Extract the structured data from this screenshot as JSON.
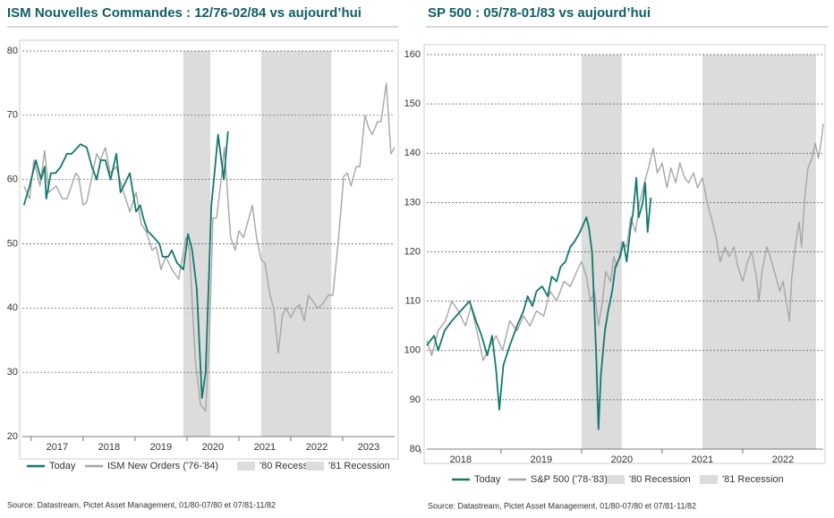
{
  "chart_data": [
    {
      "type": "line",
      "title": "ISM Nouvelles Commandes : 12/76-02/84 vs aujourd’hui",
      "source": "Source: Datastream, Pictet Asset Management, 01/80-07/80 et 07/81-11/82",
      "xlim": [
        2016.83,
        2024.0
      ],
      "xticks": [
        2017,
        2018,
        2019,
        2020,
        2021,
        2022,
        2023
      ],
      "ylim": [
        20,
        80
      ],
      "yticks": [
        20,
        30,
        40,
        50,
        60,
        70,
        80
      ],
      "grid": true,
      "bands": [
        {
          "name": "'80 Recession",
          "color": "#dcdcdc",
          "x": [
            2019.93,
            2020.45
          ]
        },
        {
          "name": "'81 Recession",
          "color": "#dcdcdc",
          "x": [
            2021.43,
            2022.78
          ]
        }
      ],
      "series": [
        {
          "name": "ISM New Orders ('76-'84)",
          "color": "#a6a6a6",
          "x": [
            2016.86,
            2016.97,
            2017.05,
            2017.17,
            2017.26,
            2017.34,
            2017.48,
            2017.6,
            2017.69,
            2017.86,
            2017.91,
            2018.0,
            2018.07,
            2018.26,
            2018.33,
            2018.43,
            2018.52,
            2018.64,
            2018.78,
            2018.9,
            2019.02,
            2019.12,
            2019.21,
            2019.33,
            2019.41,
            2019.5,
            2019.59,
            2019.71,
            2019.84,
            2019.98,
            2020.05,
            2020.16,
            2020.26,
            2020.36,
            2020.43,
            2020.5,
            2020.57,
            2020.66,
            2020.72,
            2020.84,
            2020.93,
            2021.0,
            2021.09,
            2021.26,
            2021.34,
            2021.43,
            2021.5,
            2021.6,
            2021.67,
            2021.76,
            2021.84,
            2021.91,
            2022.0,
            2022.09,
            2022.17,
            2022.26,
            2022.34,
            2022.43,
            2022.52,
            2022.6,
            2022.72,
            2022.81,
            2022.91,
            2023.02,
            2023.09,
            2023.16,
            2023.26,
            2023.33,
            2023.43,
            2023.5,
            2023.57,
            2023.67,
            2023.74,
            2023.84,
            2023.93,
            2024.0
          ],
          "values": [
            59,
            57,
            63,
            59,
            64.5,
            58,
            59,
            57,
            57,
            61,
            60.5,
            56,
            56.5,
            64,
            63,
            65,
            61,
            62,
            58,
            55,
            58,
            53,
            52,
            49,
            49.5,
            46,
            48,
            46,
            44.5,
            51,
            49,
            32,
            25,
            24,
            35,
            54,
            54,
            60,
            65,
            51,
            49,
            52,
            51,
            56,
            51,
            47.5,
            47,
            42,
            40,
            33,
            39,
            40,
            38.5,
            40,
            40.5,
            38,
            42,
            41,
            40,
            40.5,
            42,
            42,
            50,
            60.5,
            61,
            59,
            62,
            62,
            70,
            68,
            67,
            69,
            69,
            75,
            64,
            65
          ]
        },
        {
          "name": "Today",
          "color": "#12796d",
          "x": [
            2016.86,
            2016.97,
            2017.09,
            2017.19,
            2017.26,
            2017.29,
            2017.38,
            2017.47,
            2017.57,
            2017.69,
            2017.78,
            2017.95,
            2018.07,
            2018.17,
            2018.26,
            2018.34,
            2018.43,
            2018.53,
            2018.64,
            2018.72,
            2018.9,
            2019.02,
            2019.1,
            2019.16,
            2019.24,
            2019.36,
            2019.47,
            2019.53,
            2019.64,
            2019.71,
            2019.81,
            2019.93,
            2020.02,
            2020.1,
            2020.19,
            2020.29,
            2020.36,
            2020.47,
            2020.53,
            2020.6,
            2020.71,
            2020.79
          ],
          "values": [
            56,
            59,
            63,
            60,
            62,
            57,
            61,
            61,
            62,
            64,
            64,
            65.5,
            65,
            62,
            60,
            63,
            63,
            60,
            64,
            58,
            61,
            55,
            56,
            54,
            52,
            51,
            50,
            48,
            48,
            49,
            47,
            46,
            51.5,
            49,
            43,
            26,
            30,
            56,
            61,
            67,
            60,
            67.5
          ]
        }
      ],
      "legend": [
        "chart_data.0.series.1",
        "chart_data.0.series.0",
        "chart_data.0.bands.0",
        "chart_data.0.bands.1"
      ]
    },
    {
      "type": "line",
      "title": "SP 500 : 05/78-01/83 vs aujourd’hui",
      "source": "Source: Datastream, Pictet Asset Management, 01/80-07/80 et 07/81-11/82",
      "xlim": [
        2018.08,
        2023.0
      ],
      "xticks": [
        2018,
        2019,
        2020,
        2021,
        2022
      ],
      "ylim": [
        80,
        160
      ],
      "yticks": [
        80,
        90,
        100,
        110,
        120,
        130,
        140,
        150,
        160
      ],
      "grid": true,
      "bands": [
        {
          "name": "'80 Recession",
          "color": "#dcdcdc",
          "x": [
            2020.0,
            2020.5
          ]
        },
        {
          "name": "'81 Recession",
          "color": "#dcdcdc",
          "x": [
            2021.5,
            2022.91
          ]
        }
      ],
      "series": [
        {
          "name": "S&P 500 ('78-'83)",
          "color": "#a6a6a6",
          "x": [
            2018.08,
            2018.14,
            2018.22,
            2018.31,
            2018.39,
            2018.47,
            2018.56,
            2018.63,
            2018.7,
            2018.78,
            2018.87,
            2018.94,
            2019.02,
            2019.11,
            2019.2,
            2019.28,
            2019.36,
            2019.44,
            2019.53,
            2019.61,
            2019.69,
            2019.78,
            2019.86,
            2019.94,
            2020.0,
            2020.06,
            2020.11,
            2020.16,
            2020.21,
            2020.26,
            2020.3,
            2020.36,
            2020.4,
            2020.44,
            2020.5,
            2020.56,
            2020.61,
            2020.67,
            2020.72,
            2020.78,
            2020.83,
            2020.89,
            2020.94,
            2021.0,
            2021.06,
            2021.11,
            2021.17,
            2021.22,
            2021.28,
            2021.33,
            2021.39,
            2021.44,
            2021.5,
            2021.56,
            2021.61,
            2021.67,
            2021.72,
            2021.78,
            2021.83,
            2021.89,
            2021.94,
            2022.0,
            2022.06,
            2022.11,
            2022.17,
            2022.2,
            2022.24,
            2022.3,
            2022.36,
            2022.41,
            2022.46,
            2022.5,
            2022.53,
            2022.58,
            2022.61,
            2022.66,
            2022.7,
            2022.73,
            2022.77,
            2022.81,
            2022.86,
            2022.9,
            2022.94,
            2022.98,
            2023.0
          ],
          "values": [
            102,
            99,
            104,
            106,
            110,
            108,
            105,
            109,
            104,
            98,
            101,
            103,
            100,
            106,
            104,
            107,
            105,
            108,
            107,
            112,
            110,
            114,
            113,
            116,
            118,
            115,
            110,
            112,
            105,
            110,
            116,
            114,
            119,
            117,
            122,
            121,
            127,
            124,
            130,
            134,
            137,
            141,
            136,
            138,
            133,
            137,
            134,
            138,
            135,
            134,
            136,
            133,
            135,
            130,
            127,
            123,
            118,
            121,
            119,
            121,
            117,
            114,
            118,
            120,
            115,
            110,
            116,
            121,
            118,
            115,
            112,
            114,
            111,
            106,
            115,
            122,
            126,
            121,
            131,
            137,
            139,
            142,
            139,
            143,
            146
          ]
        },
        {
          "name": "Today",
          "color": "#12796d",
          "x": [
            2018.08,
            2018.17,
            2018.22,
            2018.3,
            2018.39,
            2018.5,
            2018.61,
            2018.69,
            2018.76,
            2018.83,
            2018.89,
            2018.94,
            2018.98,
            2019.03,
            2019.11,
            2019.2,
            2019.28,
            2019.33,
            2019.39,
            2019.44,
            2019.51,
            2019.58,
            2019.63,
            2019.69,
            2019.74,
            2019.8,
            2019.86,
            2019.91,
            2019.98,
            2020.06,
            2020.09,
            2020.13,
            2020.18,
            2020.21,
            2020.24,
            2020.29,
            2020.33,
            2020.38,
            2020.42,
            2020.48,
            2020.52,
            2020.56,
            2020.61,
            2020.64,
            2020.68,
            2020.71,
            2020.76,
            2020.79,
            2020.82,
            2020.86
          ],
          "values": [
            101,
            103,
            100,
            104,
            106,
            108,
            110,
            106,
            103,
            99,
            103,
            96,
            88,
            97,
            101,
            105,
            108,
            111,
            109,
            112,
            113,
            111,
            115,
            114,
            117,
            118,
            121,
            122,
            124,
            127,
            125,
            120,
            100,
            84,
            95,
            104,
            108,
            112,
            117,
            119,
            122,
            118,
            125,
            128,
            135,
            127,
            130,
            134,
            124,
            131
          ]
        }
      ],
      "legend": [
        "chart_data.1.series.1",
        "chart_data.1.series.0",
        "chart_data.1.bands.0",
        "chart_data.1.bands.1"
      ]
    }
  ]
}
